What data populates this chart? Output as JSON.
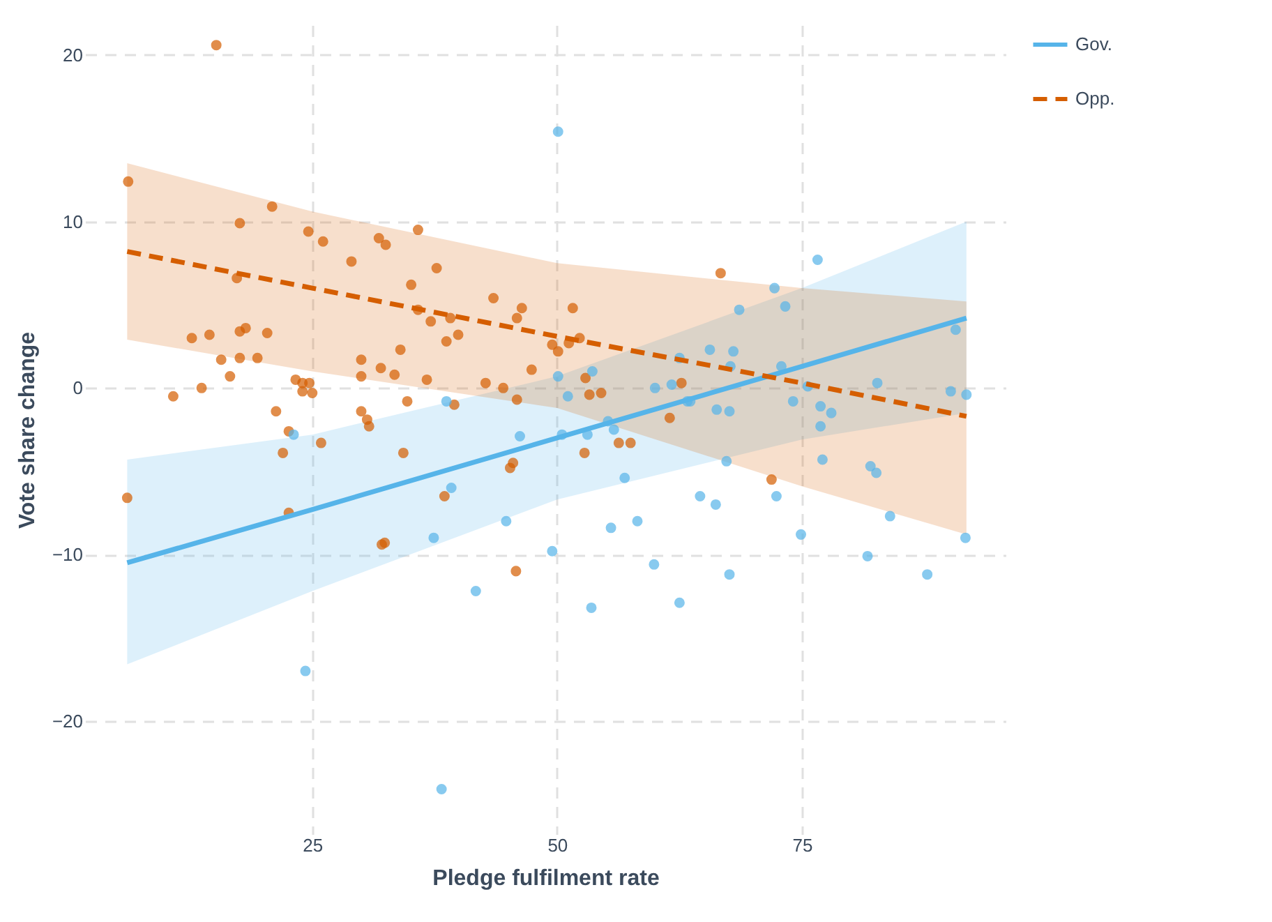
{
  "chart_data": {
    "type": "scatter",
    "xlabel": "Pledge fulfilment rate",
    "ylabel": "Vote share change",
    "xlim": [
      1.8,
      95.8
    ],
    "ylim": [
      -26.8,
      21.8
    ],
    "xticks": [
      25,
      50,
      75
    ],
    "yticks": [
      -20,
      -10,
      0,
      10,
      20
    ],
    "grid": true,
    "legend": "right",
    "series": [
      {
        "marker": "circle",
        "color": "#d55e00",
        "x": [
          15.2,
          6.2,
          20.9,
          17.6,
          24.6,
          26.1,
          31.8,
          32.5,
          29.0,
          35.1,
          17.3,
          34.0,
          12.7,
          14.5,
          17.6,
          18.2,
          20.4,
          15.7,
          17.6,
          19.4,
          30.0,
          16.6,
          30.0,
          32.0,
          33.4,
          10.8,
          13.7,
          23.3,
          24.0,
          24.7,
          24.0,
          25.0,
          34.7,
          21.3,
          30.0,
          30.6,
          30.8,
          22.6,
          25.9,
          22.0,
          34.3,
          6.1,
          22.6,
          32.1,
          35.8,
          37.7,
          43.5,
          46.4,
          45.9,
          51.6,
          35.8,
          37.1,
          39.1,
          39.9,
          38.7,
          49.5,
          50.1,
          51.2,
          52.3,
          47.4,
          42.7,
          44.5,
          45.9,
          52.9,
          53.3,
          54.5,
          62.7,
          61.5,
          36.7,
          39.5,
          56.3,
          57.5,
          38.5,
          45.2,
          45.5,
          52.8,
          45.8,
          32.4,
          66.7,
          71.9
        ],
        "values": [
          20.6,
          12.4,
          10.9,
          9.9,
          9.4,
          8.8,
          9.0,
          8.6,
          7.6,
          6.2,
          6.6,
          2.3,
          3.0,
          3.2,
          3.4,
          3.6,
          3.3,
          1.7,
          1.8,
          1.8,
          1.7,
          0.7,
          0.7,
          1.2,
          0.8,
          -0.5,
          0.0,
          0.5,
          0.3,
          0.3,
          -0.2,
          -0.3,
          -0.8,
          -1.4,
          -1.4,
          -1.9,
          -2.3,
          -2.6,
          -3.3,
          -3.9,
          -3.9,
          -6.6,
          -7.5,
          -9.4,
          9.5,
          7.2,
          5.4,
          4.8,
          4.2,
          4.8,
          4.7,
          4.0,
          4.2,
          3.2,
          2.8,
          2.6,
          2.2,
          2.7,
          3.0,
          1.1,
          0.3,
          0.0,
          -0.7,
          0.6,
          -0.4,
          -0.3,
          0.3,
          -1.8,
          0.5,
          -1.0,
          -3.3,
          -3.3,
          -6.5,
          -4.8,
          -4.5,
          -3.9,
          -11.0,
          -9.3,
          6.9,
          -5.5
        ]
      },
      {
        "marker": "circle",
        "color": "#56b4e9",
        "x": [
          23.1,
          24.3,
          38.2,
          50.1,
          50.1,
          51.1,
          53.6,
          62.5,
          60.0,
          61.7,
          63.3,
          38.7,
          46.2,
          50.5,
          53.1,
          55.2,
          55.8,
          56.9,
          39.2,
          44.8,
          37.4,
          49.5,
          55.5,
          58.2,
          59.9,
          41.7,
          53.5,
          62.5,
          76.6,
          72.2,
          73.3,
          68.6,
          65.6,
          68.0,
          67.7,
          72.9,
          75.6,
          63.6,
          74.1,
          66.3,
          67.6,
          76.9,
          78.0,
          76.9,
          90.7,
          82.7,
          90.2,
          91.8,
          67.3,
          77.1,
          82.0,
          82.6,
          64.6,
          66.2,
          72.4,
          84.0,
          74.9,
          91.7,
          81.7,
          67.6,
          87.8
        ],
        "values": [
          -2.8,
          -17.0,
          -24.1,
          15.4,
          0.7,
          -0.5,
          1.0,
          1.8,
          0.0,
          0.2,
          -0.8,
          -0.8,
          -2.9,
          -2.8,
          -2.8,
          -2.0,
          -2.5,
          -5.4,
          -6.0,
          -8.0,
          -9.0,
          -9.8,
          -8.4,
          -8.0,
          -10.6,
          -12.2,
          -13.2,
          -12.9,
          7.7,
          6.0,
          4.9,
          4.7,
          2.3,
          2.2,
          1.3,
          1.3,
          0.1,
          -0.8,
          -0.8,
          -1.3,
          -1.4,
          -1.1,
          -1.5,
          -2.3,
          3.5,
          0.3,
          -0.2,
          -0.4,
          -4.4,
          -4.3,
          -4.7,
          -5.1,
          -6.5,
          -7.0,
          -6.5,
          -7.7,
          -8.8,
          -9.0,
          -10.1,
          -11.2,
          -11.2
        ]
      },
      {
        "type": "line",
        "name": "Gov.",
        "color": "#56b4e9",
        "line_style": "solid",
        "marker": "none",
        "x": [
          6.1,
          25,
          50,
          75,
          91.8
        ],
        "values": [
          -10.5,
          -7.3,
          -3.0,
          1.3,
          4.2
        ],
        "lower": [
          -16.6,
          -12.2,
          -6.7,
          -3.1,
          -1.5
        ],
        "upper": [
          -4.3,
          -2.8,
          0.7,
          6.0,
          10.0
        ]
      },
      {
        "type": "line",
        "name": "Opp.",
        "color": "#d55e00",
        "line_style": "dashed",
        "marker": "none",
        "x": [
          6.1,
          25,
          50,
          75,
          91.8
        ],
        "values": [
          8.2,
          6.0,
          3.1,
          0.3,
          -1.7
        ],
        "lower": [
          2.9,
          1.0,
          -1.2,
          -5.9,
          -8.8
        ],
        "upper": [
          13.5,
          10.6,
          7.5,
          6.0,
          5.2
        ]
      }
    ]
  }
}
